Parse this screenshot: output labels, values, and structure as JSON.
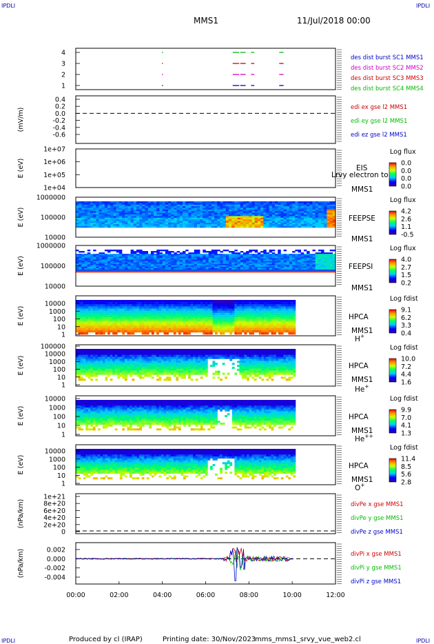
{
  "header": {
    "corner_tl": "IPDLI",
    "corner_tr": "IPDLI",
    "corner_bl": "IPDLI",
    "corner_br": "IPDLI",
    "title": "MMS1",
    "datetime": "11/Jul/2018 00:00"
  },
  "footer": {
    "produced": "Produced by cl (IRAP)",
    "printing": "Printing date: 30/Nov/2023",
    "script": "mms_mms1_srvy_vue_web2.cl"
  },
  "colors": {
    "c1": "#0000cc",
    "c2": "#cc00cc",
    "c3": "#cc0000",
    "c4": "#00bb00"
  },
  "chart_data": {
    "type": "line",
    "x_ticks": [
      "00:00",
      "02:00",
      "04:00",
      "06:00",
      "08:00",
      "10:00",
      "12:00"
    ],
    "xlim": [
      0,
      12
    ],
    "panels": [
      {
        "id": "burst",
        "y_ticks": [
          "1",
          "2",
          "3",
          "4"
        ],
        "legend": [
          {
            "text": "des dist burst SC1 MMS1",
            "color": "#0000cc"
          },
          {
            "text": "des dist burst SC2 MMS2",
            "color": "#cc00cc"
          },
          {
            "text": "des dist burst SC3 MMS3",
            "color": "#cc0000"
          },
          {
            "text": "des dist burst SC4 MMS4",
            "color": "#00bb00"
          }
        ],
        "segments": [
          {
            "sc": 4,
            "color": "#00bb00",
            "ranges": [
              [
                3.98,
                4.02
              ],
              [
                7.25,
                7.55
              ],
              [
                7.6,
                7.85
              ],
              [
                8.1,
                8.25
              ],
              [
                9.4,
                9.6
              ]
            ]
          },
          {
            "sc": 3,
            "color": "#cc0000",
            "ranges": [
              [
                3.98,
                4.02
              ],
              [
                7.25,
                7.55
              ],
              [
                7.6,
                7.85
              ],
              [
                8.1,
                8.25
              ],
              [
                9.4,
                9.6
              ]
            ]
          },
          {
            "sc": 2,
            "color": "#cc00cc",
            "ranges": [
              [
                3.98,
                4.02
              ],
              [
                7.25,
                7.55
              ],
              [
                7.6,
                7.85
              ],
              [
                8.1,
                8.25
              ],
              [
                9.4,
                9.6
              ]
            ]
          },
          {
            "sc": 1,
            "color": "#0000cc",
            "ranges": [
              [
                3.98,
                4.02
              ],
              [
                7.25,
                7.55
              ],
              [
                7.6,
                7.85
              ],
              [
                8.1,
                8.25
              ],
              [
                9.4,
                9.6
              ]
            ]
          }
        ]
      },
      {
        "id": "edi",
        "ylabel": "(mV/m)",
        "y_ticks": [
          "0.4",
          "0.2",
          "0.0",
          "-0.2",
          "-0.4",
          "-0.6"
        ],
        "legend": [
          {
            "text": "edi ex gse l2 MMS1",
            "color": "#cc0000"
          },
          {
            "text": "edi ey gse l2 MMS1",
            "color": "#00bb00"
          },
          {
            "text": "edi ez gse l2 MMS1",
            "color": "#0000cc"
          }
        ]
      },
      {
        "id": "eis",
        "ylabel": "E (eV)",
        "y_ticks": [
          "1e+07",
          "1e+06",
          "1e+05",
          "1e+04"
        ],
        "instrument": "EIS",
        "instrument2": "MMS1",
        "overlay": "Lrvy electron to",
        "cb_title": "Log flux",
        "cb_ticks": [
          "0.0",
          "0.0",
          "0.0",
          "0.0"
        ]
      },
      {
        "id": "feepse",
        "ylabel": "E (eV)",
        "y_ticks": [
          "1000000",
          "100000",
          "10000"
        ],
        "instrument": "FEEPSE",
        "instrument2": "MMS1",
        "cb_title": "Log flux",
        "cb_ticks": [
          "4.2",
          "2.6",
          "1.1",
          "-0.5"
        ]
      },
      {
        "id": "feepsi",
        "ylabel": "E (eV)",
        "y_ticks": [
          "1000000",
          "100000",
          "10000"
        ],
        "instrument": "FEEPSI",
        "instrument2": "MMS1",
        "cb_title": "Log flux",
        "cb_ticks": [
          "4.0",
          "2.7",
          "1.5",
          "0.2"
        ]
      },
      {
        "id": "hpca_h",
        "ylabel": "E (eV)",
        "y_ticks": [
          "10000",
          "1000",
          "100",
          "10",
          "1"
        ],
        "instrument": "HPCA",
        "instrument2": "MMS1",
        "species": "H",
        "species_sup": "+",
        "cb_title": "Log fdist",
        "cb_ticks": [
          "9.1",
          "6.2",
          "3.3",
          "0.4"
        ]
      },
      {
        "id": "hpca_he",
        "ylabel": "E (eV)",
        "y_ticks": [
          "100000",
          "10000",
          "1000",
          "100",
          "10",
          "1"
        ],
        "instrument": "HPCA",
        "instrument2": "MMS1",
        "species": "He",
        "species_sup": "+",
        "cb_title": "Log fdist",
        "cb_ticks": [
          "10.0",
          "7.2",
          "4.4",
          "1.6"
        ]
      },
      {
        "id": "hpca_hepp",
        "ylabel": "E (eV)",
        "y_ticks": [
          "10000",
          "1000",
          "100",
          "10",
          "1"
        ],
        "instrument": "HPCA",
        "instrument2": "MMS1",
        "species": "He",
        "species_sup": "++",
        "cb_title": "Log fdist",
        "cb_ticks": [
          "9.9",
          "7.0",
          "4.1",
          "1.3"
        ]
      },
      {
        "id": "hpca_o",
        "ylabel": "E (eV)",
        "y_ticks": [
          "10000",
          "1000",
          "100",
          "10",
          "1"
        ],
        "instrument": "HPCA",
        "instrument2": "MMS1",
        "species": "O",
        "species_sup": "+",
        "cb_title": "Log fdist",
        "cb_ticks": [
          "11.4",
          "8.5",
          "5.6",
          "2.8"
        ]
      },
      {
        "id": "divpe",
        "ylabel": "(nPa/km)",
        "y_ticks": [
          "1e+21",
          "8e+20",
          "6e+20",
          "4e+20",
          "2e+20",
          "0"
        ],
        "legend": [
          {
            "text": "divPe x gse MMS1",
            "color": "#cc0000"
          },
          {
            "text": "divPe y gse MMS1",
            "color": "#00bb00"
          },
          {
            "text": "divPe z gse MMS1",
            "color": "#0000cc"
          }
        ]
      },
      {
        "id": "divpi",
        "ylabel": "(nPa/km)",
        "y_ticks": [
          "0.002",
          "0.000",
          "-0.002",
          "-0.004"
        ],
        "ylim": [
          -0.0055,
          0.0035
        ],
        "legend": [
          {
            "text": "divPi x gse MMS1",
            "color": "#cc0000"
          },
          {
            "text": "divPi y gse MMS1",
            "color": "#00bb00"
          },
          {
            "text": "divPi z gse MMS1",
            "color": "#0000cc"
          }
        ]
      }
    ]
  }
}
